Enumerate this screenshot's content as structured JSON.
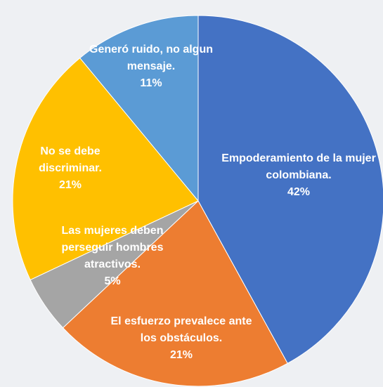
{
  "chart_data": {
    "type": "pie",
    "categories": [
      "Empoderamiento de la mujer colombiana.",
      "El esfuerzo prevalece ante los obstáculos.",
      "Las mujeres deben perseguir hombres atractivos.",
      "No se debe discriminar.",
      "Generó ruido, no algun mensaje."
    ],
    "values": [
      42,
      21,
      5,
      21,
      11
    ],
    "value_labels": [
      "42%",
      "21%",
      "5%",
      "21%",
      "11%"
    ],
    "colors": [
      "#4472c4",
      "#ed7d31",
      "#a5a5a5",
      "#ffc000",
      "#5b9bd5"
    ]
  }
}
